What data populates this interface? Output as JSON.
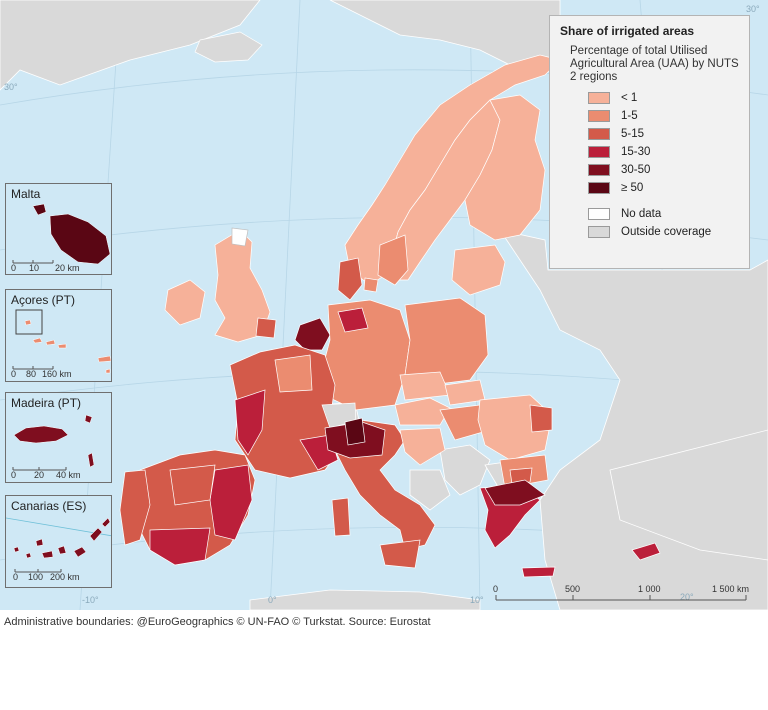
{
  "legend": {
    "title": "Share of irrigated areas",
    "subtitle": "Percentage of total Utilised Agricultural Area (UAA) by NUTS 2 regions",
    "classes": [
      {
        "label": "< 1",
        "color": "#f6b199"
      },
      {
        "label": "1-5",
        "color": "#eb8c70"
      },
      {
        "label": "5-15",
        "color": "#d35a4a"
      },
      {
        "label": "15-30",
        "color": "#bb1f3a"
      },
      {
        "label": "30-50",
        "color": "#7f0e1f"
      },
      {
        "label": "≥ 50",
        "color": "#5a0614"
      }
    ],
    "extra": [
      {
        "label": "No data",
        "color": "#ffffff"
      },
      {
        "label": "Outside coverage",
        "color": "#d9d9d9"
      }
    ]
  },
  "scale": {
    "ticks": [
      "0",
      "500",
      "1 000",
      "1 500 km"
    ]
  },
  "graticule": {
    "labels": [
      "-10°",
      "0°",
      "10°",
      "20°",
      "30°",
      "30°"
    ]
  },
  "insets": [
    {
      "title": "Malta",
      "scale_ticks": [
        "0",
        "10",
        "20 km"
      ],
      "color": "#5a0614"
    },
    {
      "title": "Açores (PT)",
      "scale_ticks": [
        "0",
        "80",
        "160 km"
      ],
      "color": "#eb8c70"
    },
    {
      "title": "Madeira (PT)",
      "scale_ticks": [
        "0",
        "20",
        "40 km"
      ],
      "color": "#7f0e1f"
    },
    {
      "title": "Canarias (ES)",
      "scale_ticks": [
        "0",
        "100",
        "200 km"
      ],
      "color": "#7f0e1f"
    }
  ],
  "footer": {
    "text": "Administrative boundaries:  @EuroGeographics © UN-FAO © Turkstat. Source: Eurostat"
  },
  "colors": {
    "sea": "#cfe8f5",
    "outside": "#d9d9d9",
    "border": "#ffffff"
  }
}
